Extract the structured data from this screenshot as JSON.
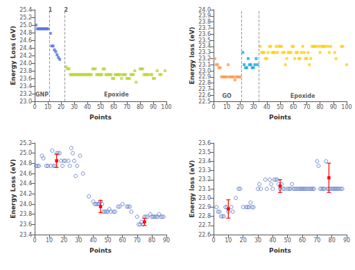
{
  "chart_data": [
    {
      "type": "scatter",
      "xlabel": "Points",
      "ylabel": "Energy Loss (eV)",
      "xlim": [
        0,
        100
      ],
      "ylim": [
        23.0,
        25.4
      ],
      "xticks": [
        0,
        10,
        20,
        30,
        40,
        50,
        60,
        70,
        80,
        90,
        100
      ],
      "yticks": [
        {
          "value": 23.0,
          "label": "23.0"
        },
        23.2,
        23.4,
        23.6,
        23.8,
        {
          "value": 24.0,
          "label": "24.0"
        },
        24.2,
        24.4,
        24.6,
        24.8,
        {
          "value": 25.0,
          "label": "25.0"
        },
        25.2,
        25.4
      ],
      "grid": false,
      "vlines": [
        11,
        23
      ],
      "annotations": [
        {
          "text": "1",
          "x": 11.8,
          "y": 25.3
        },
        {
          "text": "2",
          "x": 23.8,
          "y": 25.3
        },
        {
          "text": "GNP",
          "x": 5.5,
          "y": 23.08
        },
        {
          "text": "Epoxide",
          "x": 62,
          "y": 23.08
        }
      ],
      "series": [
        {
          "marker": "square",
          "x": [
            1,
            2,
            3,
            4,
            5,
            6,
            7,
            8,
            9,
            10,
            12,
            13,
            14,
            15,
            16,
            17,
            18,
            19
          ],
          "values": [
            25.0,
            24.9,
            24.9,
            24.9,
            24.9,
            24.9,
            24.9,
            24.9,
            24.9,
            24.9,
            24.78,
            24.45,
            24.45,
            24.35,
            24.3,
            24.22,
            24.15,
            24.1
          ]
        },
        {
          "marker": "square",
          "x": [
            24,
            25,
            26,
            27,
            28,
            29,
            30,
            31,
            32,
            33,
            34,
            35,
            36,
            37,
            38,
            39,
            40,
            41,
            42,
            43,
            44,
            45,
            46,
            47,
            48,
            49,
            50,
            51,
            52,
            53,
            54,
            55,
            56,
            57,
            58,
            59,
            60,
            61,
            62,
            63,
            64,
            65,
            66,
            67,
            68,
            69,
            70,
            71,
            72,
            73,
            74,
            75,
            76,
            77,
            80,
            81,
            82,
            83,
            84,
            85,
            86,
            88,
            89,
            90,
            91,
            93,
            95,
            96,
            99
          ],
          "values": [
            23.9,
            23.85,
            23.85,
            23.7,
            23.7,
            23.7,
            23.7,
            23.7,
            23.7,
            23.7,
            23.7,
            23.7,
            23.7,
            23.7,
            23.7,
            23.7,
            23.7,
            23.7,
            23.7,
            23.7,
            23.85,
            23.85,
            23.85,
            23.7,
            23.7,
            23.7,
            23.7,
            23.7,
            23.85,
            23.85,
            23.7,
            23.7,
            23.7,
            23.7,
            23.7,
            23.6,
            23.6,
            23.7,
            23.7,
            23.7,
            23.7,
            23.7,
            23.6,
            23.7,
            23.7,
            23.7,
            23.6,
            23.6,
            23.6,
            23.7,
            23.7,
            23.7,
            23.8,
            23.5,
            23.85,
            23.85,
            23.85,
            23.7,
            23.7,
            23.7,
            23.7,
            23.7,
            23.7,
            23.6,
            23.6,
            23.8,
            23.7,
            23.7,
            23.8
          ]
        }
      ]
    },
    {
      "type": "scatter",
      "xlabel": "Points",
      "ylabel": "Energy loss (eV)",
      "xlim": [
        0,
        100
      ],
      "ylim": [
        22.5,
        24.0
      ],
      "xticks": [
        0,
        10,
        20,
        30,
        40,
        50,
        60,
        70,
        80,
        90,
        100
      ],
      "yticks": [
        22.5,
        22.6,
        22.7,
        22.8,
        22.9,
        {
          "value": 23.0,
          "label": "23.0"
        },
        23.1,
        23.2,
        23.3,
        23.4,
        23.5,
        23.6,
        23.7,
        23.8,
        23.9,
        {
          "value": 24.0,
          "label": "24.0"
        }
      ],
      "grid": false,
      "vlines": [
        21,
        34
      ],
      "annotations": [
        {
          "text": "GO",
          "x": 10,
          "y": 22.53
        },
        {
          "text": "Epoxide",
          "x": 67,
          "y": 22.53
        }
      ],
      "series": [
        {
          "marker": "square",
          "x": [
            1,
            2,
            3,
            4,
            5,
            6,
            7,
            8,
            9,
            10,
            11,
            12,
            13,
            14,
            15,
            16,
            17,
            18,
            19,
            20
          ],
          "values": [
            23.2,
            23.1,
            23.1,
            23.05,
            23.05,
            22.9,
            22.9,
            22.9,
            22.9,
            22.9,
            23.1,
            22.9,
            22.9,
            22.9,
            22.9,
            22.85,
            22.9,
            22.9,
            22.9,
            22.9
          ]
        },
        {
          "marker": "square",
          "x": [
            22,
            23,
            24,
            25,
            26,
            27,
            28,
            29,
            30,
            31,
            32,
            33
          ],
          "values": [
            23.3,
            23.1,
            23.05,
            23.05,
            23.2,
            23.1,
            23.1,
            23.05,
            23.05,
            23.1,
            23.2,
            23.1
          ]
        },
        {
          "marker": "square",
          "x": [
            35,
            36,
            37,
            38,
            39,
            40,
            41,
            42,
            43,
            44,
            45,
            46,
            47,
            48,
            49,
            50,
            51,
            52,
            53,
            54,
            55,
            56,
            57,
            58,
            59,
            60,
            61,
            62,
            63,
            64,
            65,
            66,
            67,
            68,
            69,
            70,
            71,
            72,
            73,
            74,
            75,
            76,
            77,
            79,
            80,
            81,
            82,
            83,
            84,
            86,
            87,
            88,
            91,
            92,
            96,
            97,
            100
          ],
          "values": [
            23.4,
            23.3,
            23.3,
            23.3,
            23.2,
            23.2,
            23.3,
            23.4,
            23.4,
            23.3,
            23.3,
            23.3,
            23.4,
            23.3,
            23.4,
            23.4,
            23.4,
            23.3,
            23.3,
            23.1,
            23.2,
            23.3,
            23.3,
            23.3,
            23.4,
            23.4,
            23.2,
            23.3,
            23.3,
            23.2,
            23.2,
            23.3,
            23.4,
            23.3,
            23.2,
            23.2,
            23.3,
            23.1,
            23.2,
            23.4,
            23.4,
            23.4,
            23.4,
            23.4,
            23.3,
            23.4,
            23.4,
            23.4,
            23.4,
            23.4,
            23.3,
            23.4,
            23.3,
            23.2,
            23.4,
            23.4,
            23.1
          ]
        }
      ]
    },
    {
      "type": "scatter",
      "xlabel": "Points",
      "ylabel": "Energy Loss (eV)",
      "xlim": [
        0,
        90
      ],
      "ylim": [
        23.4,
        25.2
      ],
      "xticks": [
        0,
        10,
        20,
        30,
        40,
        50,
        60,
        70,
        80,
        90
      ],
      "yticks": [
        23.4,
        23.6,
        23.8,
        {
          "value": 24.0,
          "label": "24.0"
        },
        24.2,
        24.4,
        24.6,
        24.8,
        {
          "value": 25.0,
          "label": "25.0"
        },
        25.2
      ],
      "grid": false,
      "series": [
        {
          "marker": "circle",
          "x": [
            1,
            2,
            3,
            5,
            6,
            8,
            9,
            11,
            12,
            13,
            14,
            15,
            16,
            17,
            18,
            19,
            20,
            21,
            23,
            24,
            25,
            26,
            27,
            28,
            29,
            31,
            33,
            37,
            40,
            41,
            42,
            43,
            44,
            45,
            46,
            47,
            48,
            49,
            50,
            51,
            52,
            54,
            55,
            57,
            58,
            60,
            63,
            64,
            65,
            66,
            70,
            71,
            72,
            73,
            74,
            75,
            76,
            77,
            79,
            80,
            81,
            82,
            83,
            84,
            85,
            86,
            87,
            88
          ],
          "values": [
            24.75,
            24.75,
            24.75,
            24.95,
            24.9,
            24.75,
            24.75,
            24.75,
            25.05,
            24.75,
            24.75,
            25.0,
            25.0,
            25.0,
            24.85,
            24.75,
            24.85,
            24.85,
            24.85,
            24.75,
            25.1,
            25.0,
            24.85,
            24.55,
            24.75,
            24.95,
            24.6,
            24.15,
            24.05,
            24.0,
            24.0,
            24.0,
            24.0,
            24.05,
            24.0,
            23.85,
            23.85,
            23.85,
            23.85,
            23.9,
            23.85,
            23.85,
            23.85,
            23.95,
            23.95,
            24.0,
            23.95,
            23.95,
            23.95,
            23.85,
            23.75,
            23.6,
            23.6,
            23.65,
            23.6,
            23.75,
            23.75,
            23.75,
            23.8,
            23.75,
            23.75,
            23.75,
            23.75,
            23.75,
            23.8,
            23.75,
            23.75,
            23.75
          ]
        }
      ],
      "error_bars": [
        {
          "x": 15,
          "y": 24.85,
          "yerr": 0.13,
          "color": "red"
        },
        {
          "x": 45,
          "y": 23.95,
          "yerr": 0.12,
          "color": "red"
        },
        {
          "x": 75,
          "y": 23.65,
          "yerr": 0.07,
          "color": "red"
        }
      ]
    },
    {
      "type": "scatter",
      "xlabel": "Points",
      "ylabel": "Energy loss (eV)",
      "xlim": [
        0,
        90
      ],
      "ylim": [
        22.6,
        23.6
      ],
      "xticks": [
        0,
        10,
        20,
        30,
        40,
        50,
        60,
        70,
        80,
        90
      ],
      "yticks": [
        22.6,
        22.7,
        22.8,
        22.9,
        {
          "value": 23.0,
          "label": "23.0"
        },
        23.1,
        23.2,
        23.3,
        23.4,
        23.5,
        23.6
      ],
      "grid": false,
      "series": [
        {
          "marker": "circle",
          "x": [
            2,
            3,
            4,
            5,
            6,
            7,
            8,
            9,
            10,
            12,
            13,
            15,
            17,
            18,
            20,
            22,
            23,
            24,
            25,
            26,
            27,
            30,
            31,
            32,
            35,
            36,
            38,
            39,
            40,
            41,
            42,
            43,
            44,
            45,
            46,
            47,
            48,
            50,
            51,
            52,
            53,
            54,
            55,
            56,
            57,
            58,
            59,
            60,
            61,
            62,
            63,
            64,
            65,
            66,
            67,
            68,
            70,
            71,
            72,
            73,
            74,
            75,
            76,
            77,
            78,
            79,
            80,
            81,
            82,
            83,
            84,
            85,
            86,
            87
          ],
          "values": [
            22.9,
            22.85,
            22.85,
            22.8,
            22.8,
            22.8,
            22.9,
            22.9,
            22.85,
            22.9,
            22.85,
            23.0,
            23.1,
            23.1,
            22.9,
            22.9,
            22.9,
            22.9,
            22.95,
            22.9,
            22.9,
            23.1,
            23.15,
            23.1,
            23.2,
            23.1,
            23.2,
            23.15,
            23.1,
            23.2,
            23.2,
            23.2,
            23.15,
            23.1,
            23.15,
            23.1,
            23.1,
            23.1,
            23.1,
            23.1,
            23.15,
            23.1,
            23.1,
            23.1,
            23.1,
            23.1,
            23.1,
            23.1,
            23.1,
            23.1,
            23.1,
            23.1,
            23.1,
            23.1,
            23.1,
            23.1,
            23.4,
            23.35,
            23.1,
            23.1,
            23.1,
            23.1,
            23.4,
            23.1,
            23.1,
            23.1,
            23.1,
            23.1,
            23.1,
            23.1,
            23.1,
            23.1,
            23.1,
            23.1
          ]
        }
      ],
      "error_bars": [
        {
          "x": 10,
          "y": 22.88,
          "yerr": 0.1,
          "color": "red"
        },
        {
          "x": 45,
          "y": 23.13,
          "yerr": 0.07,
          "color": "red"
        },
        {
          "x": 78,
          "y": 23.22,
          "yerr": 0.16,
          "color": "red"
        }
      ]
    }
  ]
}
